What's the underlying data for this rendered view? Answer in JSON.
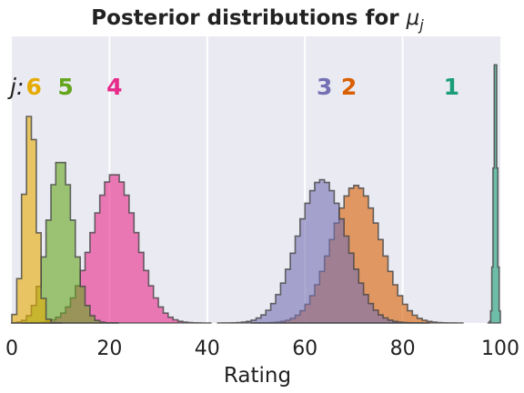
{
  "chart_data": {
    "type": "histogram",
    "title_main": "Posterior distributions for ",
    "title_symbol": "μ",
    "title_subscript": "j",
    "xlabel": "Rating",
    "ylabel": "",
    "xlim": [
      0,
      100
    ],
    "xticks": [
      0,
      20,
      40,
      60,
      80,
      100
    ],
    "xtick_labels": [
      "0",
      "20",
      "40",
      "60",
      "80",
      "100"
    ],
    "grid": "x-only",
    "background": "#eaeaf2",
    "label_prefix": "j:",
    "series": [
      {
        "name": "1",
        "mean": 99.0,
        "sd": 0.35,
        "peak": 0.96,
        "color": "#1b9e77",
        "label_x": 90
      },
      {
        "name": "2",
        "mean": 70.5,
        "sd": 5.0,
        "peak": 0.48,
        "color": "#d95f02",
        "label_x": 69
      },
      {
        "name": "3",
        "mean": 63.5,
        "sd": 5.0,
        "peak": 0.5,
        "color": "#7570b3",
        "label_x": 64
      },
      {
        "name": "4",
        "mean": 21.0,
        "sd": 4.5,
        "peak": 0.52,
        "color": "#e7298a",
        "label_x": 21
      },
      {
        "name": "5",
        "mean": 10.0,
        "sd": 2.6,
        "peak": 0.57,
        "color": "#66a61e",
        "label_x": 11
      },
      {
        "name": "6",
        "mean": 3.8,
        "sd": 1.3,
        "peak": 0.74,
        "color": "#e6ab02",
        "label_x": 4.5
      }
    ]
  }
}
